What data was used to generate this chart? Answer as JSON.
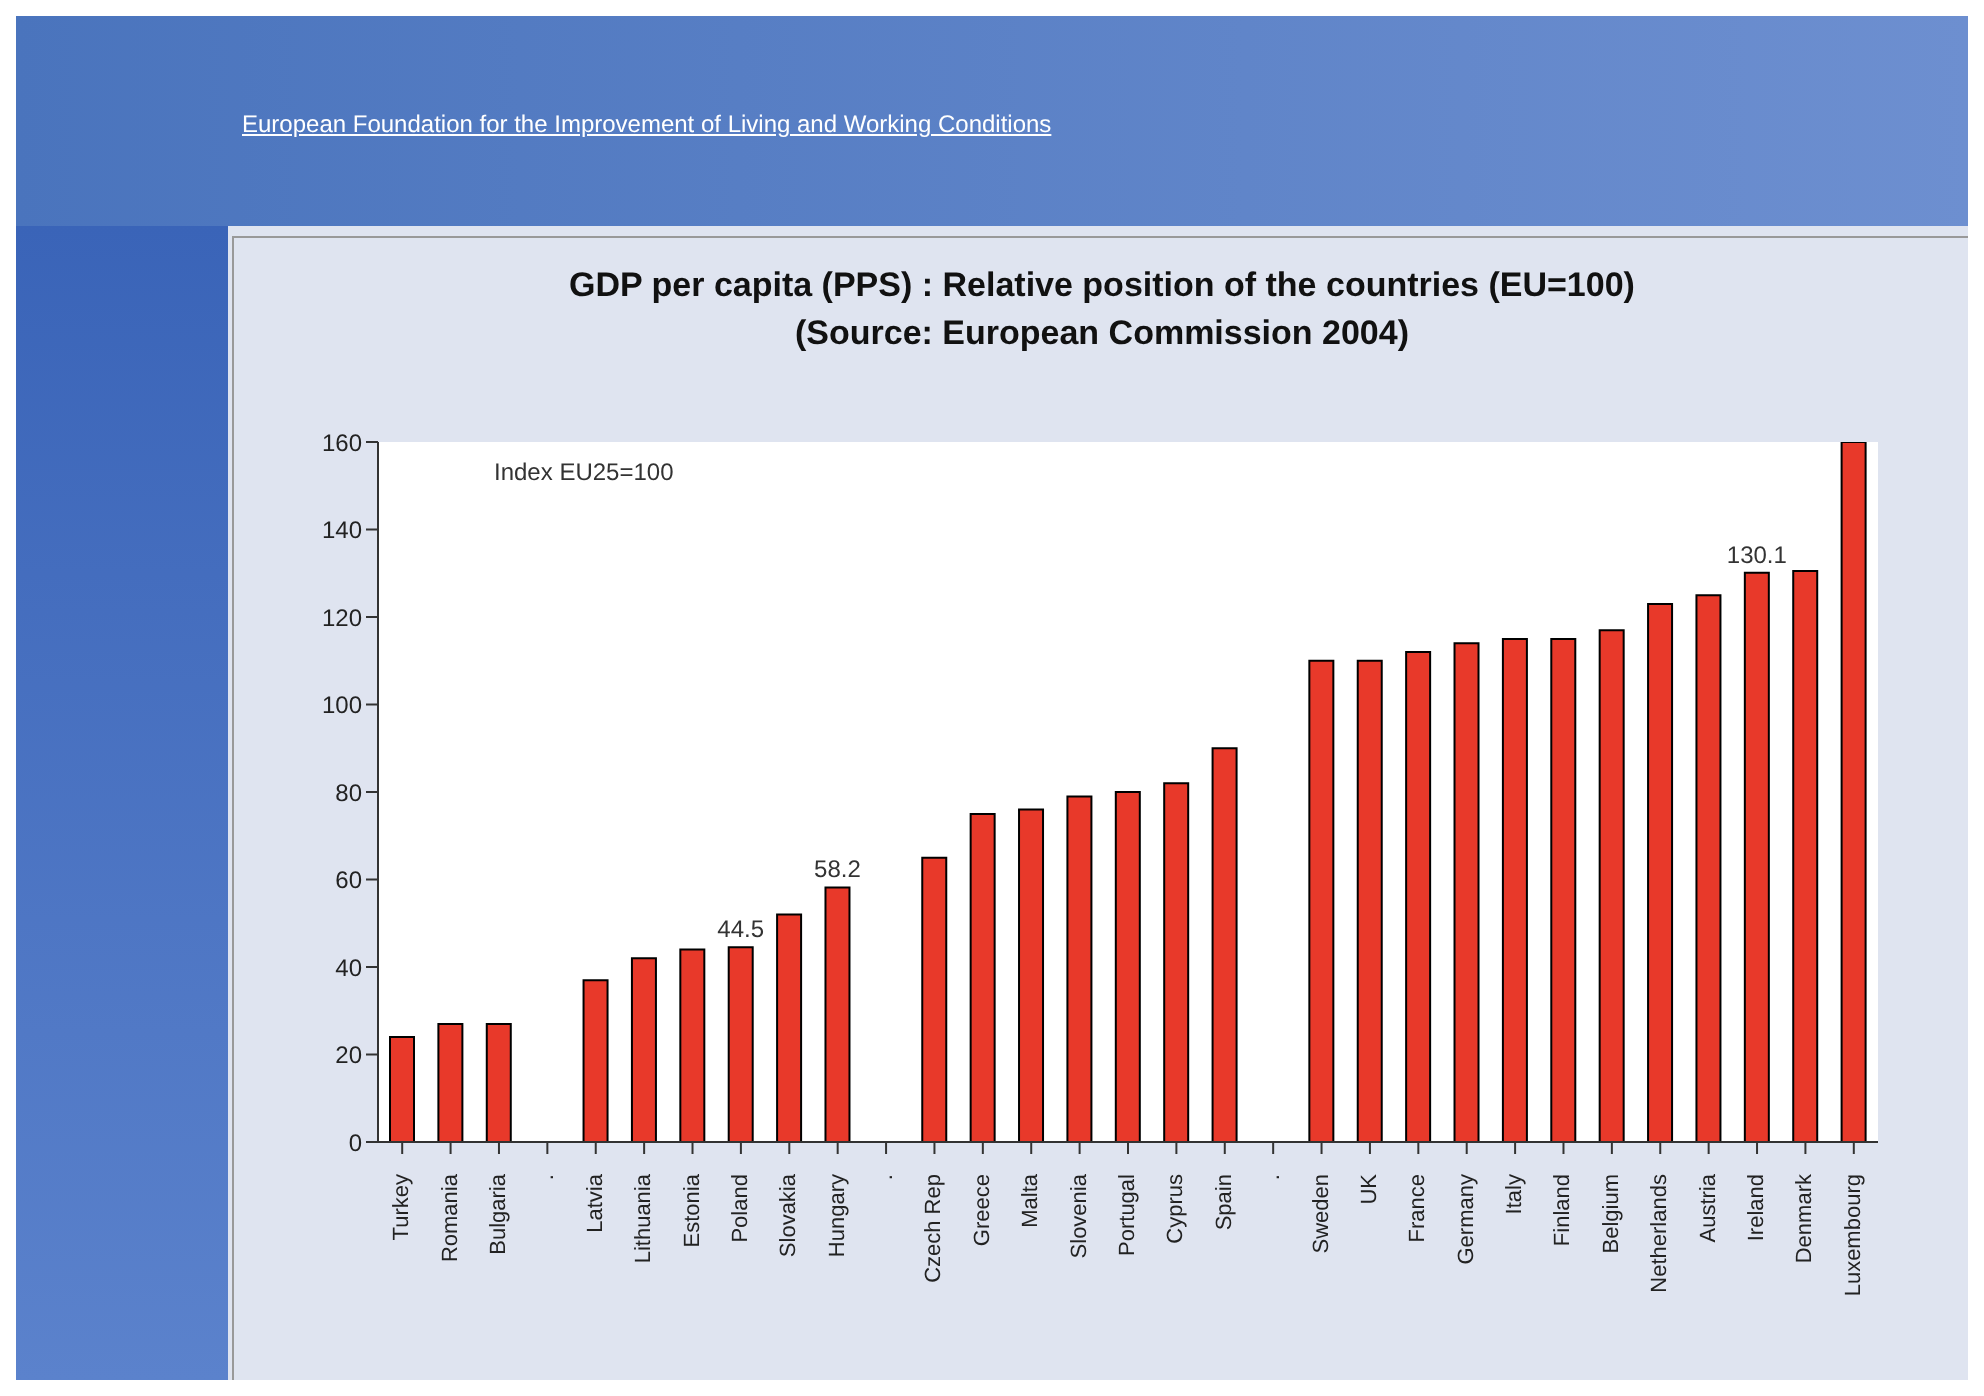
{
  "chart_data": {
    "type": "bar",
    "title": "GDP per capita (PPS) : Relative position of the countries (EU=100)",
    "subtitle": "(Source: European Commission 2004)",
    "annotations": [
      "European Foundation for the Improvement of Living and Working Conditions",
      "Index EU25=100"
    ],
    "categories": [
      "Turkey",
      "Romania",
      "Bulgaria",
      ".",
      "Latvia",
      "Lithuania",
      "Estonia",
      "Poland",
      "Slovakia",
      "Hungary",
      ".",
      "Czech Rep",
      "Greece",
      "Malta",
      "Slovenia",
      "Portugal",
      "Cyprus",
      "Spain",
      ".",
      "Sweden",
      "UK",
      "France",
      "Germany",
      "Italy",
      "Finland",
      "Belgium",
      "Netherlands",
      "Austria",
      "Ireland",
      "Denmark",
      "Luxembourg"
    ],
    "values": [
      24,
      27,
      27,
      null,
      37,
      42,
      44,
      44.5,
      52,
      58.2,
      null,
      65,
      75,
      76,
      79,
      80,
      82,
      90,
      null,
      110,
      110,
      112,
      114,
      115,
      115,
      117,
      123,
      125,
      130.1,
      130.5,
      160
    ],
    "value_labels": [
      null,
      null,
      null,
      null,
      null,
      null,
      null,
      "44.5",
      null,
      "58.2",
      null,
      null,
      null,
      null,
      null,
      null,
      null,
      null,
      null,
      null,
      null,
      null,
      null,
      null,
      null,
      null,
      null,
      null,
      "130.1",
      null,
      null
    ],
    "color": "#e8392a",
    "ylim": [
      0,
      160
    ],
    "yticks": [
      0,
      20,
      40,
      60,
      80,
      100,
      120,
      140,
      160
    ],
    "grid": false,
    "legend": false
  }
}
